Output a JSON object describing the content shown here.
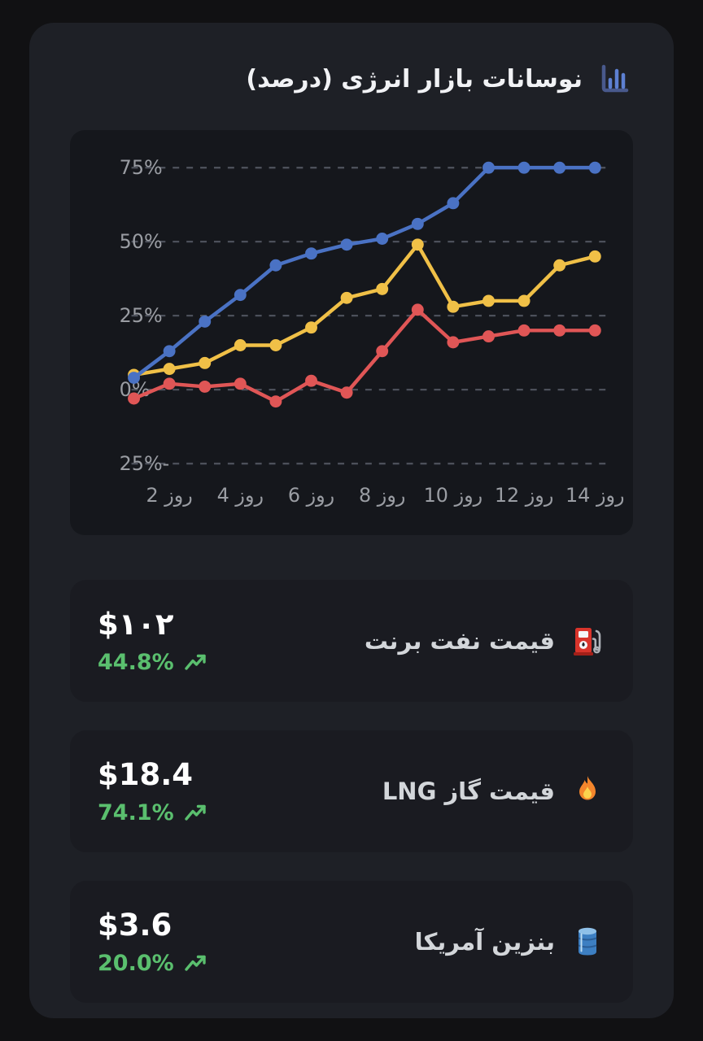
{
  "title": {
    "text": "نوسانات بازار انرژی (درصد)"
  },
  "chart_data": {
    "type": "line",
    "title": "نوسانات بازار انرژی (درصد)",
    "xlabel": "",
    "ylabel": "",
    "x": [
      1,
      2,
      3,
      4,
      5,
      6,
      7,
      8,
      9,
      10,
      11,
      12,
      13,
      14
    ],
    "x_tick_days": [
      2,
      4,
      6,
      8,
      10,
      12,
      14
    ],
    "x_tick_labels": [
      "روز 2",
      "روز 4",
      "روز 6",
      "روز 8",
      "روز 10",
      "روز 12",
      "روز 14"
    ],
    "y_tick_values": [
      75,
      50,
      25,
      0,
      -25
    ],
    "y_tick_labels": [
      "75%",
      "50%",
      "25%",
      "0%",
      "-25%"
    ],
    "ylim": [
      -25,
      75
    ],
    "grid": "horizontal-dashed",
    "legend": false,
    "series": [
      {
        "name": "بنزین آمریکا",
        "color": "#e05656",
        "values": [
          -3,
          2,
          1,
          2,
          -4,
          3,
          -1,
          13,
          27,
          16,
          18,
          20,
          20,
          20
        ]
      },
      {
        "name": "قیمت نفت برنت",
        "color": "#f0c047",
        "values": [
          5,
          7,
          9,
          15,
          15,
          21,
          31,
          34,
          49,
          28,
          30,
          30,
          42,
          45
        ]
      },
      {
        "name": "قیمت گاز LNG",
        "color": "#4a72c4",
        "values": [
          4,
          13,
          23,
          32,
          42,
          46,
          49,
          51,
          56,
          63,
          75,
          75,
          75,
          75
        ]
      }
    ]
  },
  "cards": [
    {
      "icon": "fuel-pump-icon",
      "label": "قیمت نفت برنت",
      "value": "$۱۰۲",
      "change": "44.8%",
      "trend": "up"
    },
    {
      "icon": "fire-icon",
      "label": "قیمت گاز LNG",
      "value": "$18.4",
      "change": "74.1%",
      "trend": "up"
    },
    {
      "icon": "oil-barrel-icon",
      "label": "بنزین آمریکا",
      "value": "$3.6",
      "change": "20.0%",
      "trend": "up"
    }
  ],
  "colors": {
    "page_bg": "#111113",
    "panel_bg": "#1e2026",
    "chart_bg": "#15171c",
    "card_bg": "#1a1b21",
    "grid_line": "#4c505a",
    "tick_text": "#9a9da3",
    "title_text": "#f1f2f5",
    "label_text": "#d3d6da",
    "value_text": "#ffffff",
    "positive_green": "#5abf6e",
    "series_blue": "#4a72c4",
    "series_yellow": "#f0c047",
    "series_red": "#e05656"
  }
}
